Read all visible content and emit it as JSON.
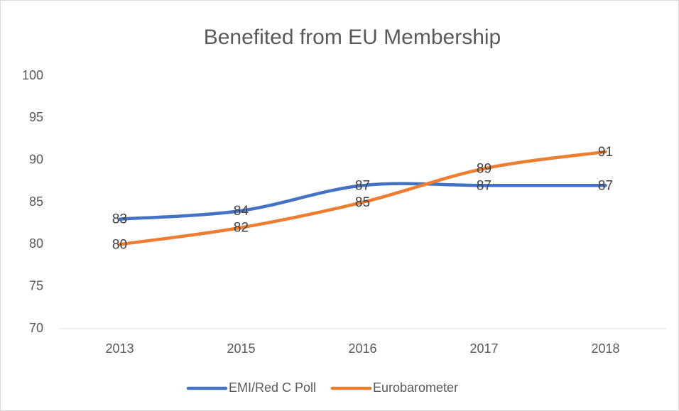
{
  "chart_data": {
    "type": "line",
    "title": "Benefited from EU Membership",
    "categories": [
      "2013",
      "2015",
      "2016",
      "2017",
      "2018"
    ],
    "series": [
      {
        "name": "EMI/Red C Poll",
        "color": "#4472c4",
        "values": [
          83,
          84,
          87,
          87,
          87
        ]
      },
      {
        "name": "Eurobarometer",
        "color": "#ed7d31",
        "values": [
          80,
          82,
          85,
          89,
          91
        ]
      }
    ],
    "ylim": [
      70,
      100
    ],
    "yticks": [
      70,
      75,
      80,
      85,
      90,
      95,
      100
    ],
    "grid": false,
    "legend": "bottom"
  }
}
